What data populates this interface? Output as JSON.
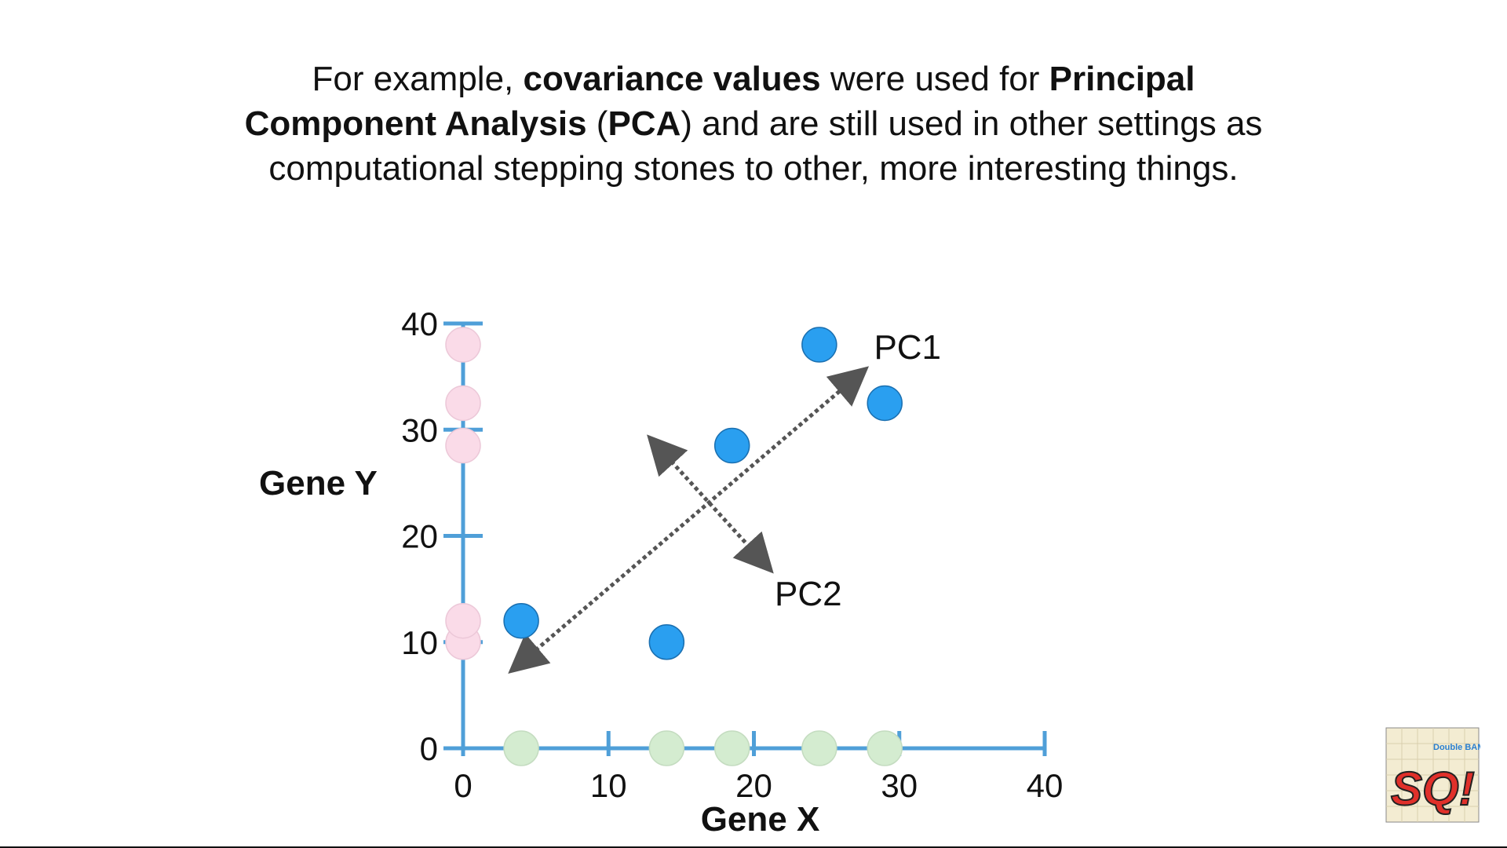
{
  "caption": {
    "p1": "For example, ",
    "b1": "covariance values",
    "p2": " were used for ",
    "b2": "Principal Component Analysis",
    "p3": " (",
    "b3": "PCA",
    "p4": ") and are still used in other settings as computational stepping stones to other, more interesting things."
  },
  "logo": {
    "text_main": "SQ!",
    "text_top": "Double BAM!!"
  },
  "colors": {
    "axis": "#4f9fd8",
    "point_2d": "#2a9ff0",
    "point_x_projection": "#d4ecd0",
    "point_y_projection": "#fadbe8",
    "arrow": "#555555"
  },
  "chart_data": {
    "type": "scatter",
    "title": "",
    "xlabel": "Gene X",
    "ylabel": "Gene Y",
    "xlim": [
      0,
      40
    ],
    "ylim": [
      0,
      40
    ],
    "x_ticks": [
      0,
      10,
      20,
      30,
      40
    ],
    "y_ticks": [
      0,
      10,
      20,
      30,
      40
    ],
    "x_tick_labels": [
      "0",
      "10",
      "20",
      "30",
      "40"
    ],
    "y_tick_labels": [
      "0",
      "10",
      "20",
      "30",
      "40"
    ],
    "grid": false,
    "legend": false,
    "points": [
      {
        "x": 4,
        "y": 12
      },
      {
        "x": 14,
        "y": 10
      },
      {
        "x": 18.5,
        "y": 28.5
      },
      {
        "x": 24.5,
        "y": 38
      },
      {
        "x": 29,
        "y": 32.5
      }
    ],
    "x_projections": [
      4,
      14,
      18.5,
      24.5,
      29
    ],
    "y_projections": [
      10,
      12,
      28.5,
      32.5,
      38
    ],
    "annotations": [
      {
        "label": "PC1",
        "from": [
          3.5,
          7.5
        ],
        "to": [
          27.5,
          35.5
        ]
      },
      {
        "label": "PC2",
        "from": [
          13,
          29
        ],
        "to": [
          21,
          17
        ]
      }
    ]
  }
}
